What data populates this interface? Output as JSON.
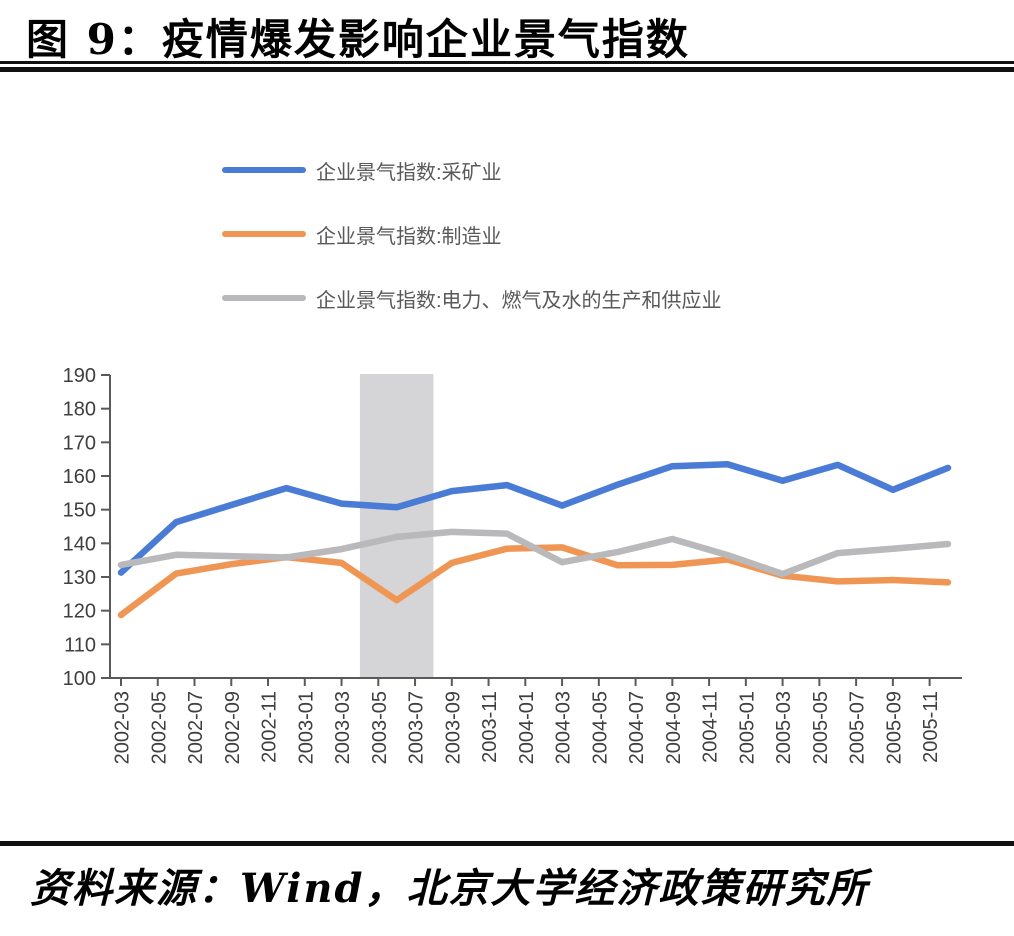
{
  "title": "图 9：疫情爆发影响企业景气指数",
  "source": "资料来源：Wind，北京大学经济政策研究所",
  "chart_data": {
    "type": "line",
    "title": "图 9：疫情爆发影响企业景气指数",
    "xlabel": "",
    "ylabel": "",
    "grid": false,
    "legend_position": "top-left",
    "ylim": [
      100,
      190
    ],
    "yticks": [
      100,
      110,
      120,
      130,
      140,
      150,
      160,
      170,
      180,
      190
    ],
    "xticks": [
      "2002-03",
      "2002-05",
      "2002-07",
      "2002-09",
      "2002-11",
      "2003-01",
      "2003-03",
      "2003-05",
      "2003-07",
      "2003-09",
      "2003-11",
      "2004-01",
      "2004-03",
      "2004-05",
      "2004-07",
      "2004-09",
      "2004-11",
      "2005-01",
      "2005-03",
      "2005-05",
      "2005-07",
      "2005-09",
      "2005-11"
    ],
    "x": [
      "2002-03",
      "2002-06",
      "2002-09",
      "2002-12",
      "2003-03",
      "2003-06",
      "2003-09",
      "2003-12",
      "2004-03",
      "2004-06",
      "2004-09",
      "2004-12",
      "2005-03",
      "2005-06",
      "2005-09",
      "2005-12"
    ],
    "series": [
      {
        "name": "企业景气指数:采矿业",
        "color": "#4a7cd6",
        "values": [
          131.3,
          146.3,
          151.4,
          156.4,
          151.8,
          150.7,
          155.5,
          157.3,
          151.2,
          157.4,
          162.9,
          163.5,
          158.6,
          163.3,
          155.9,
          162.4
        ]
      },
      {
        "name": "企业景气指数:制造业",
        "color": "#f09655",
        "values": [
          118.7,
          131.0,
          133.8,
          135.9,
          134.2,
          123.1,
          134.2,
          138.4,
          138.8,
          133.5,
          133.6,
          135.2,
          130.4,
          128.7,
          129.1,
          128.4
        ]
      },
      {
        "name": "企业景气指数:电力、燃气及水的生产和供应业",
        "color": "#b9b9bc",
        "values": [
          133.6,
          136.6,
          136.2,
          135.8,
          138.3,
          141.9,
          143.4,
          142.9,
          134.4,
          137.4,
          141.3,
          136.5,
          130.9,
          137.1,
          138.4,
          139.8
        ]
      }
    ],
    "shaded_band": {
      "from": "2003-04",
      "to": "2003-08",
      "color": "#d5d5d7",
      "note": "SARS outbreak period highlight"
    },
    "axis_color": "#595959"
  }
}
